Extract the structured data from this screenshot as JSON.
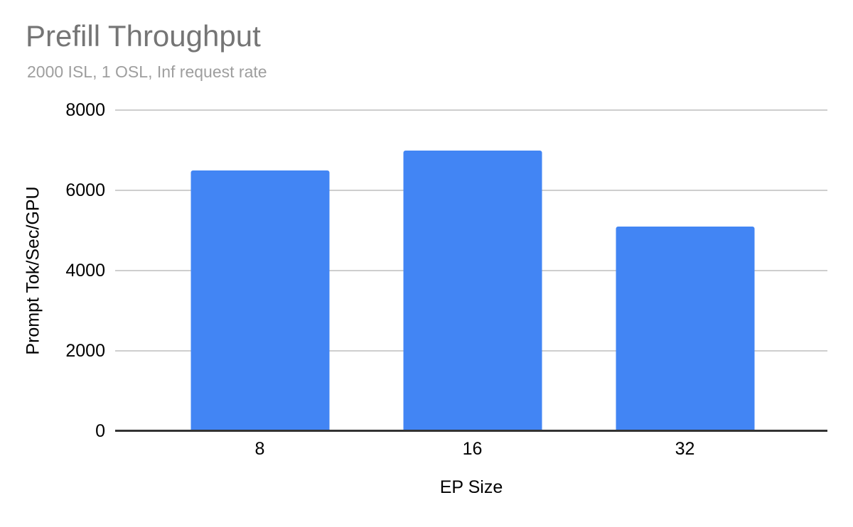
{
  "chart_data": {
    "type": "bar",
    "title": "Prefill Throughput",
    "subtitle": "2000 ISL, 1 OSL, Inf request rate",
    "categories": [
      "8",
      "16",
      "32"
    ],
    "values": [
      6500,
      7000,
      5100
    ],
    "xlabel": "EP Size",
    "ylabel": "Prompt Tok/Sec/GPU",
    "ylim": [
      0,
      8000
    ],
    "yticks": [
      0,
      2000,
      4000,
      6000,
      8000
    ],
    "grid": true,
    "legend_position": "none",
    "bar_color": "#4285f4",
    "colors": {
      "title": "#757575",
      "subtitle": "#9e9e9e",
      "axis_label": "#000000",
      "tick_label": "#000000",
      "gridline": "#cecece",
      "baseline": "#333333",
      "background": "#ffffff"
    }
  }
}
